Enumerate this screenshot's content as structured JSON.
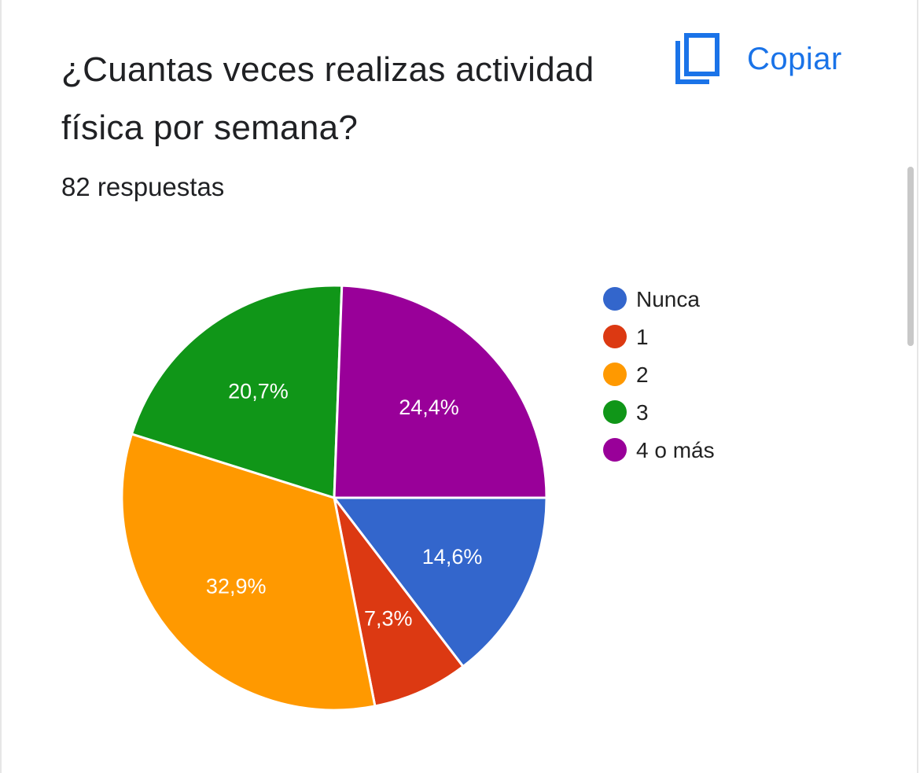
{
  "header": {
    "title": "¿Cuantas veces realizas actividad física por semana?",
    "responses": "82 respuestas",
    "copy_label": "Copiar",
    "copy_icon": "copy-icon"
  },
  "chart_data": {
    "type": "pie",
    "categories": [
      "Nunca",
      "1",
      "2",
      "3",
      "4 o más"
    ],
    "values": [
      14.6,
      7.3,
      32.9,
      20.7,
      24.4
    ],
    "labels": [
      "14,6%",
      "7,3%",
      "32,9%",
      "20,7%",
      "24,4%"
    ],
    "colors": [
      "#3366cc",
      "#dc3912",
      "#ff9900",
      "#109618",
      "#990099"
    ],
    "legend_position": "right",
    "start_angle_deg": 90,
    "direction": "clockwise-from-right"
  }
}
